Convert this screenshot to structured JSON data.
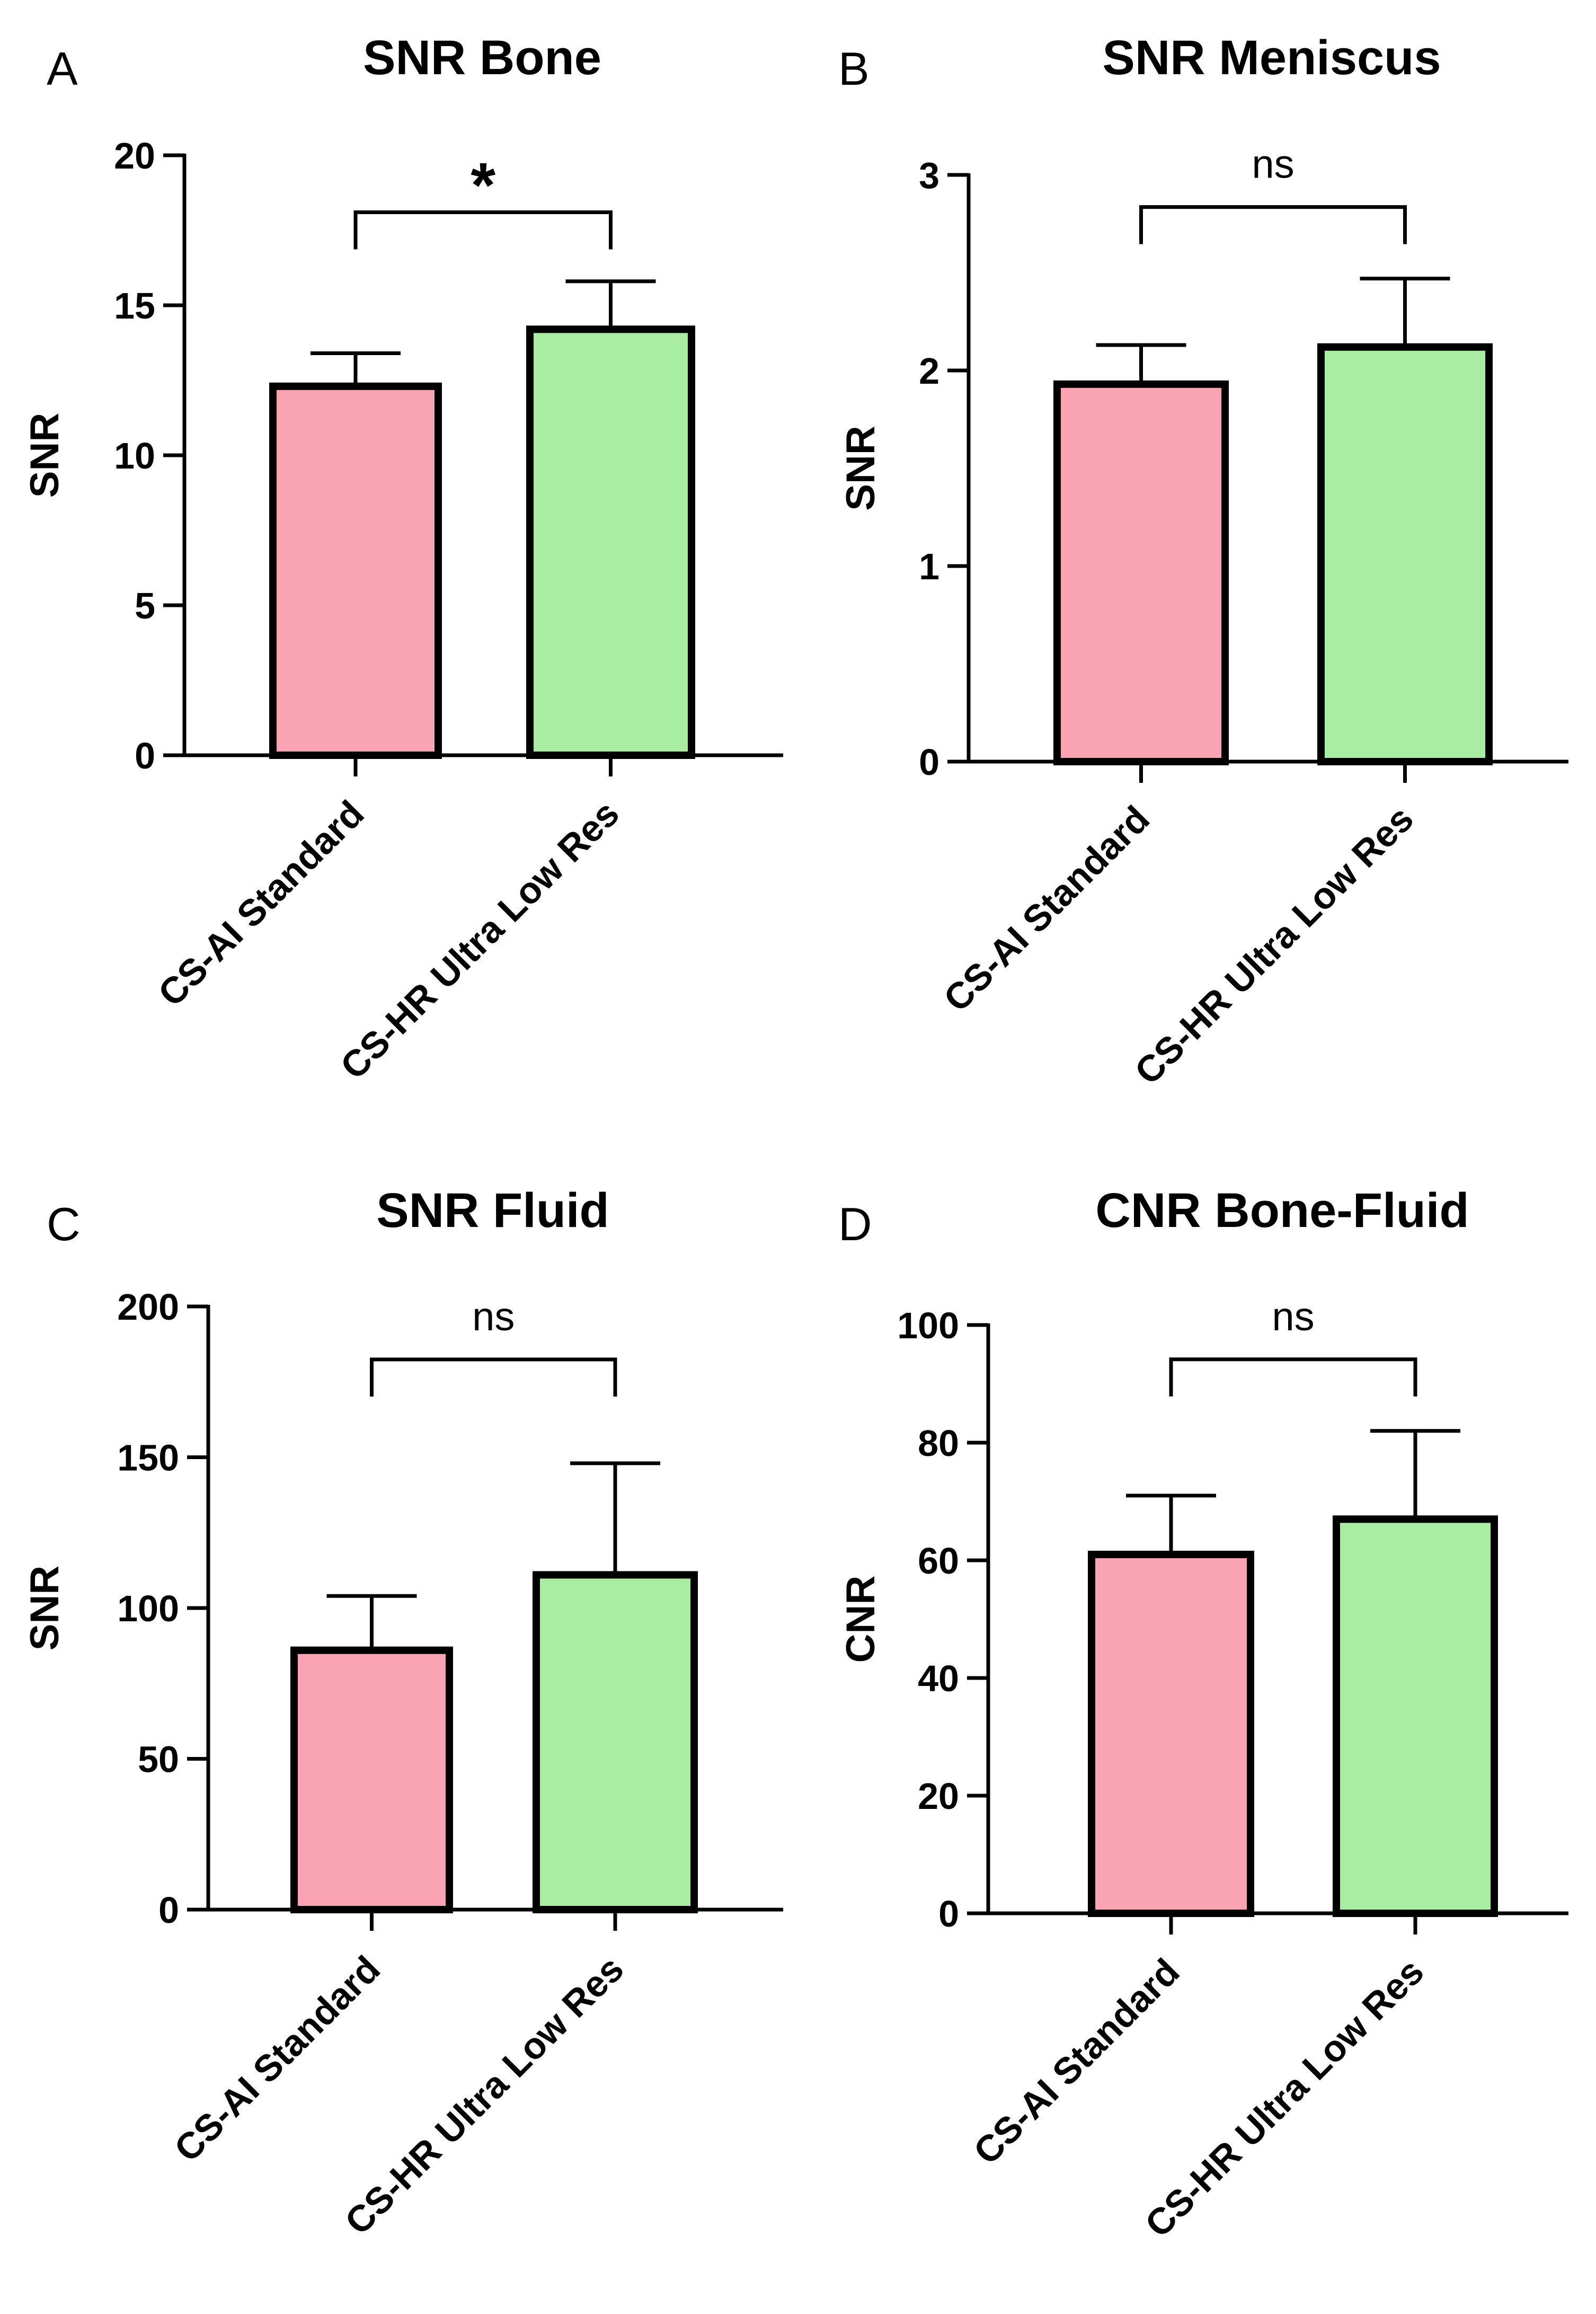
{
  "figure": {
    "chart_data": [
      {
        "panel": "A",
        "type": "bar",
        "title": "SNR Bone",
        "xlabel": "",
        "ylabel": "SNR",
        "ylim": [
          0,
          20
        ],
        "yticks": [
          0,
          5,
          10,
          15,
          20
        ],
        "yticklabels": [
          "0",
          "5",
          "10",
          "15",
          "20"
        ],
        "categories": [
          "CS-AI Standard",
          "CS-HR Ultra Low Res"
        ],
        "values": [
          12.3,
          14.2
        ],
        "errors": [
          1.1,
          1.6
        ],
        "colors": [
          "#F9A3B3",
          "#A8EDA1"
        ],
        "significance": "*"
      },
      {
        "panel": "B",
        "type": "bar",
        "title": "SNR Meniscus",
        "xlabel": "",
        "ylabel": "SNR",
        "ylim": [
          0,
          3
        ],
        "yticks": [
          0,
          1,
          2,
          3
        ],
        "yticklabels": [
          "0",
          "1",
          "2",
          "3"
        ],
        "categories": [
          "CS-AI Standard",
          "CS-HR Ultra Low Res"
        ],
        "values": [
          1.93,
          2.12
        ],
        "errors": [
          0.2,
          0.35
        ],
        "colors": [
          "#F9A3B3",
          "#A8EDA1"
        ],
        "significance": "ns"
      },
      {
        "panel": "C",
        "type": "bar",
        "title": "SNR Fluid",
        "xlabel": "",
        "ylabel": "SNR",
        "ylim": [
          0,
          200
        ],
        "yticks": [
          0,
          50,
          100,
          150,
          200
        ],
        "yticklabels": [
          "0",
          "50",
          "100",
          "150",
          "200"
        ],
        "categories": [
          "CS-AI Standard",
          "CS-HR Ultra Low Res"
        ],
        "values": [
          86,
          111
        ],
        "errors": [
          18,
          37
        ],
        "colors": [
          "#F9A3B3",
          "#A8EDA1"
        ],
        "significance": "ns"
      },
      {
        "panel": "D",
        "type": "bar",
        "title": "CNR Bone-Fluid",
        "xlabel": "",
        "ylabel": "CNR",
        "ylim": [
          0,
          100
        ],
        "yticks": [
          0,
          20,
          40,
          60,
          80,
          100
        ],
        "yticklabels": [
          "0",
          "20",
          "40",
          "60",
          "80",
          "100"
        ],
        "categories": [
          "CS-AI Standard",
          "CS-HR Ultra Low Res"
        ],
        "values": [
          61,
          67
        ],
        "errors": [
          10,
          15
        ],
        "colors": [
          "#F9A3B3",
          "#A8EDA1"
        ],
        "significance": "ns"
      }
    ]
  }
}
